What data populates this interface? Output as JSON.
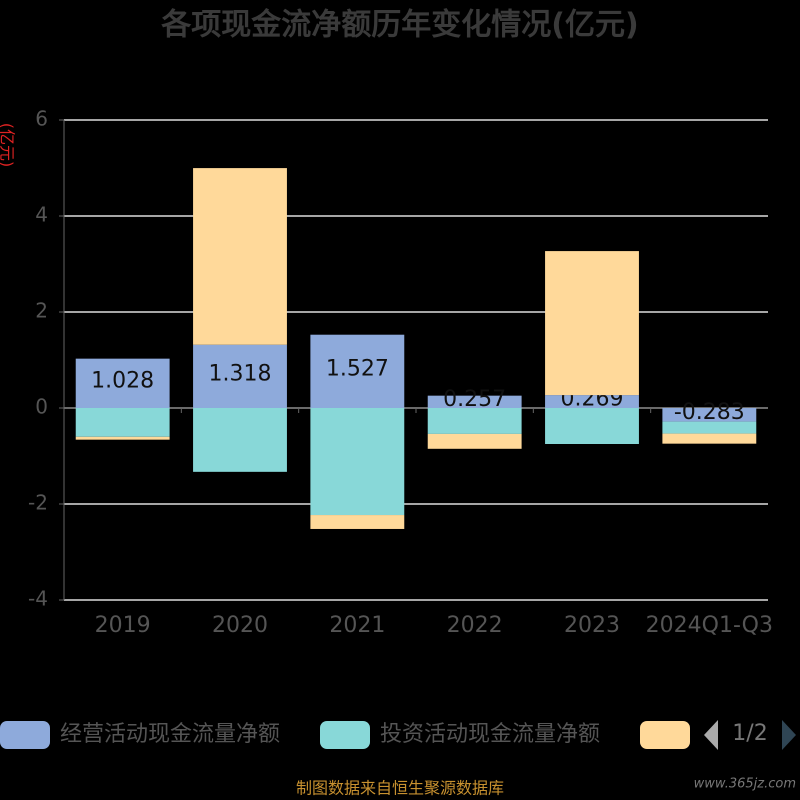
{
  "chart_data": {
    "type": "bar",
    "title": "各项现金流净额历年变化情况(亿元)",
    "y_label": "(亿元)",
    "categories": [
      "2019",
      "2020",
      "2021",
      "2022",
      "2023",
      "2024Q1-Q3"
    ],
    "series": [
      {
        "name": "经营活动现金流量净额",
        "color": "#8eaadb",
        "values": [
          1.028,
          1.318,
          1.527,
          0.257,
          0.269,
          -0.283
        ],
        "show_labels": true
      },
      {
        "name": "投资活动现金流量净额",
        "color": "#88d8d8",
        "values": [
          -0.6,
          -1.33,
          -2.23,
          -0.54,
          -0.75,
          -0.25
        ]
      },
      {
        "color": "#ffd99a",
        "values": [
          -0.06,
          3.68,
          -0.29,
          -0.31,
          3.0,
          -0.21
        ]
      }
    ],
    "stacked": true,
    "ylim": [
      -4,
      6
    ],
    "yticks": [
      -4,
      -2,
      0,
      2,
      4,
      6
    ],
    "grid": true,
    "legend_page": "1/2",
    "source": "制图数据来自恒生聚源数据库",
    "watermark": "www.365jz.com"
  }
}
